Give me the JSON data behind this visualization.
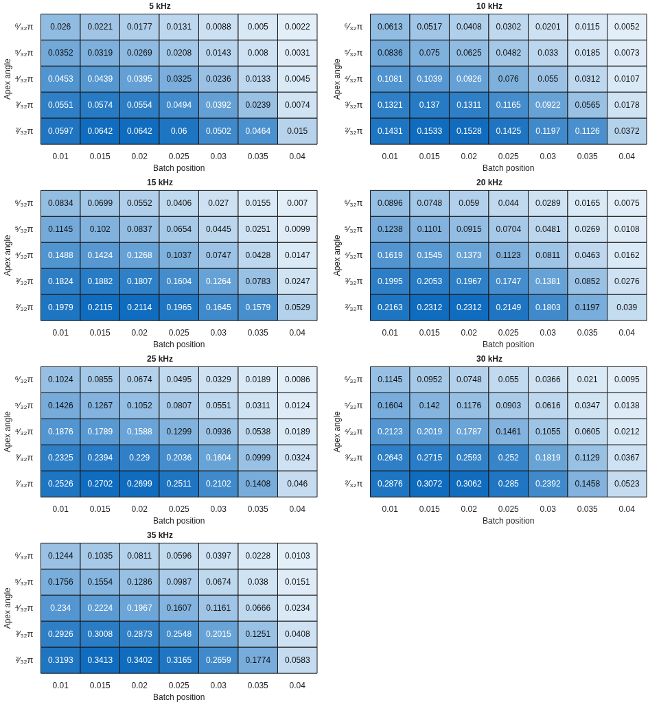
{
  "chart_data": [
    {
      "type": "heatmap",
      "title": "5 kHz",
      "xlabel": "Batch position",
      "ylabel": "Apex angle",
      "data_labels": true,
      "categories": [
        "0.01",
        "0.015",
        "0.02",
        "0.025",
        "0.03",
        "0.035",
        "0.04"
      ],
      "y_categories": [
        "⁶⁄₃₂π",
        "⁵⁄₃₂π",
        "⁴⁄₃₂π",
        "³⁄₃₂π",
        "²⁄₃₂π"
      ],
      "cells": [
        [
          0.026,
          0.0221,
          0.0177,
          0.0131,
          0.0088,
          0.005,
          0.0022
        ],
        [
          0.0352,
          0.0319,
          0.0269,
          0.0208,
          0.0143,
          0.008,
          0.0031
        ],
        [
          0.0453,
          0.0439,
          0.0395,
          0.0325,
          0.0236,
          0.0133,
          0.0045
        ],
        [
          0.0551,
          0.0574,
          0.0554,
          0.0494,
          0.0392,
          0.0239,
          0.0074
        ],
        [
          0.0597,
          0.0642,
          0.0642,
          0.06,
          0.0502,
          0.0464,
          0.015
        ]
      ]
    },
    {
      "type": "heatmap",
      "title": "10 kHz",
      "xlabel": "Batch position",
      "ylabel": "Apex angle",
      "data_labels": true,
      "categories": [
        "0.01",
        "0.015",
        "0.02",
        "0.025",
        "0.03",
        "0.035",
        "0.04"
      ],
      "y_categories": [
        "⁶⁄₃₂π",
        "⁵⁄₃₂π",
        "⁴⁄₃₂π",
        "³⁄₃₂π",
        "²⁄₃₂π"
      ],
      "cells": [
        [
          0.0613,
          0.0517,
          0.0408,
          0.0302,
          0.0201,
          0.0115,
          0.0052
        ],
        [
          0.0836,
          0.075,
          0.0625,
          0.0482,
          0.033,
          0.0185,
          0.0073
        ],
        [
          0.1081,
          0.1039,
          0.0926,
          0.076,
          0.055,
          0.0312,
          0.0107
        ],
        [
          0.1321,
          0.137,
          0.1311,
          0.1165,
          0.0922,
          0.0565,
          0.0178
        ],
        [
          0.1431,
          0.1533,
          0.1528,
          0.1425,
          0.1197,
          0.1126,
          0.0372
        ]
      ]
    },
    {
      "type": "heatmap",
      "title": "15 kHz",
      "xlabel": "Batch position",
      "ylabel": "Apex angle",
      "data_labels": true,
      "categories": [
        "0.01",
        "0.015",
        "0.02",
        "0.025",
        "0.03",
        "0.035",
        "0.04"
      ],
      "y_categories": [
        "⁶⁄₃₂π",
        "⁵⁄₃₂π",
        "⁴⁄₃₂π",
        "³⁄₃₂π",
        "²⁄₃₂π"
      ],
      "cells": [
        [
          0.0834,
          0.0699,
          0.0552,
          0.0406,
          0.027,
          0.0155,
          0.007
        ],
        [
          0.1145,
          0.102,
          0.0837,
          0.0654,
          0.0445,
          0.0251,
          0.0099
        ],
        [
          0.1488,
          0.1424,
          0.1268,
          0.1037,
          0.0747,
          0.0428,
          0.0147
        ],
        [
          0.1824,
          0.1882,
          0.1807,
          0.1604,
          0.1264,
          0.0783,
          0.0247
        ],
        [
          0.1979,
          0.2115,
          0.2114,
          0.1965,
          0.1645,
          0.1579,
          0.0529
        ]
      ]
    },
    {
      "type": "heatmap",
      "title": "20 kHz",
      "xlabel": "Batch position",
      "ylabel": "Apex angle",
      "data_labels": true,
      "categories": [
        "0.01",
        "0.015",
        "0.02",
        "0.025",
        "0.03",
        "0.035",
        "0.04"
      ],
      "y_categories": [
        "⁶⁄₃₂π",
        "⁵⁄₃₂π",
        "⁴⁄₃₂π",
        "³⁄₃₂π",
        "²⁄₃₂π"
      ],
      "cells": [
        [
          0.0896,
          0.0748,
          0.059,
          0.044,
          0.0289,
          0.0165,
          0.0075
        ],
        [
          0.1238,
          0.1101,
          0.0915,
          0.0704,
          0.0481,
          0.0269,
          0.0108
        ],
        [
          0.1619,
          0.1545,
          0.1373,
          0.1123,
          0.0811,
          0.0463,
          0.0162
        ],
        [
          0.1995,
          0.2053,
          0.1967,
          0.1747,
          0.1381,
          0.0852,
          0.0276
        ],
        [
          0.2163,
          0.2312,
          0.2312,
          0.2149,
          0.1803,
          0.1197,
          0.039
        ]
      ]
    },
    {
      "type": "heatmap",
      "title": "25 kHz",
      "xlabel": "Batch position",
      "ylabel": "Apex angle",
      "data_labels": true,
      "categories": [
        "0.01",
        "0.015",
        "0.02",
        "0.025",
        "0.03",
        "0.035",
        "0.04"
      ],
      "y_categories": [
        "⁶⁄₃₂π",
        "⁵⁄₃₂π",
        "⁴⁄₃₂π",
        "³⁄₃₂π",
        "²⁄₃₂π"
      ],
      "cells": [
        [
          0.1024,
          0.0855,
          0.0674,
          0.0495,
          0.0329,
          0.0189,
          0.0086
        ],
        [
          0.1426,
          0.1267,
          0.1052,
          0.0807,
          0.0551,
          0.0311,
          0.0124
        ],
        [
          0.1876,
          0.1789,
          0.1588,
          0.1299,
          0.0936,
          0.0538,
          0.0189
        ],
        [
          0.2325,
          0.2394,
          0.229,
          0.2036,
          0.1604,
          0.0999,
          0.0324
        ],
        [
          0.2526,
          0.2702,
          0.2699,
          0.2511,
          0.2102,
          0.1408,
          0.046
        ]
      ]
    },
    {
      "type": "heatmap",
      "title": "30 kHz",
      "xlabel": "Batch position",
      "ylabel": "Apex angle",
      "data_labels": true,
      "categories": [
        "0.01",
        "0.015",
        "0.02",
        "0.025",
        "0.03",
        "0.035",
        "0.04"
      ],
      "y_categories": [
        "⁶⁄₃₂π",
        "⁵⁄₃₂π",
        "⁴⁄₃₂π",
        "³⁄₃₂π",
        "²⁄₃₂π"
      ],
      "cells": [
        [
          0.1145,
          0.0952,
          0.0748,
          0.055,
          0.0366,
          0.021,
          0.0095
        ],
        [
          0.1604,
          0.142,
          0.1176,
          0.0903,
          0.0616,
          0.0347,
          0.0138
        ],
        [
          0.2123,
          0.2019,
          0.1787,
          0.1461,
          0.1055,
          0.0605,
          0.0212
        ],
        [
          0.2643,
          0.2715,
          0.2593,
          0.252,
          0.1819,
          0.1129,
          0.0367
        ],
        [
          0.2876,
          0.3072,
          0.3062,
          0.285,
          0.2392,
          0.1458,
          0.0523
        ]
      ]
    },
    {
      "type": "heatmap",
      "title": "35 kHz",
      "xlabel": "Batch position",
      "ylabel": "Apex angle",
      "data_labels": true,
      "categories": [
        "0.01",
        "0.015",
        "0.02",
        "0.025",
        "0.03",
        "0.035",
        "0.04"
      ],
      "y_categories": [
        "⁶⁄₃₂π",
        "⁵⁄₃₂π",
        "⁴⁄₃₂π",
        "³⁄₃₂π",
        "²⁄₃₂π"
      ],
      "cells": [
        [
          0.1244,
          0.1035,
          0.0811,
          0.0596,
          0.0397,
          0.0228,
          0.0103
        ],
        [
          0.1756,
          0.1554,
          0.1286,
          0.0987,
          0.0674,
          0.038,
          0.0151
        ],
        [
          0.234,
          0.2224,
          0.1967,
          0.1607,
          0.1161,
          0.0666,
          0.0234
        ],
        [
          0.2926,
          0.3008,
          0.2873,
          0.2548,
          0.2015,
          0.1251,
          0.0408
        ],
        [
          0.3193,
          0.3413,
          0.3402,
          0.3165,
          0.2659,
          0.1774,
          0.0583
        ]
      ]
    }
  ]
}
